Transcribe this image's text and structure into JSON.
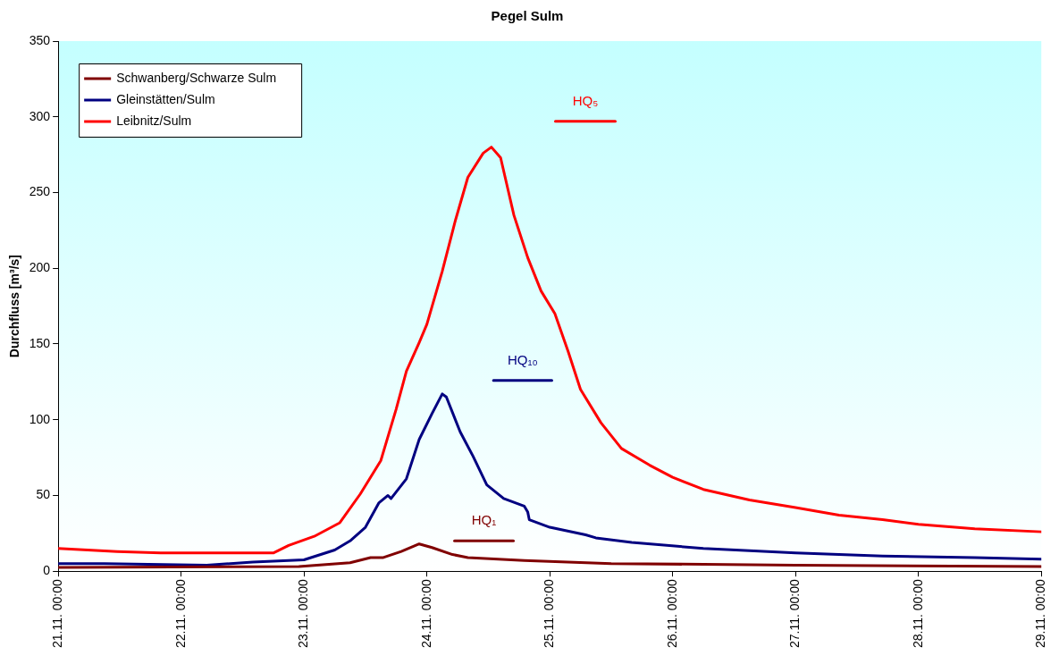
{
  "chart_data": {
    "type": "line",
    "title": "Pegel Sulm",
    "ylabel": "Durchfluss [m³/s]",
    "xlim": [
      "--11-21T00:00",
      "--11-29T00:00"
    ],
    "xticks": [
      {
        "value": "--11-21T00:00",
        "label": "21.11. 00:00"
      },
      {
        "value": "--11-22T00:00",
        "label": "22.11. 00:00"
      },
      {
        "value": "--11-23T00:00",
        "label": "23.11. 00:00"
      },
      {
        "value": "--11-24T00:00",
        "label": "24.11. 00:00"
      },
      {
        "value": "--11-25T00:00",
        "label": "25.11. 00:00"
      },
      {
        "value": "--11-26T00:00",
        "label": "26.11. 00:00"
      },
      {
        "value": "--11-27T00:00",
        "label": "27.11. 00:00"
      },
      {
        "value": "--11-28T00:00",
        "label": "28.11. 00:00"
      },
      {
        "value": "--11-29T00:00",
        "label": "29.11. 00:00"
      }
    ],
    "ylim": [
      0,
      350
    ],
    "yticks": [
      0,
      50,
      100,
      150,
      200,
      250,
      300,
      350
    ],
    "grid": false,
    "legend": "top left",
    "marker": "none",
    "line_style": "solid",
    "series": [
      {
        "name": "Schwanberg/Schwarze Sulm",
        "color": "#800000",
        "x": [
          "--11-21T00:00",
          "--11-22T23:00",
          "--11-23T09:00",
          "--11-23T13:00",
          "--11-23T15:30",
          "--11-23T19:00",
          "--11-23T22:30",
          "--11-24T01:00",
          "--11-24T05:00",
          "--11-24T08:00",
          "--11-24T19:00",
          "--11-25T12:00",
          "--11-27T00:00",
          "--11-29T00:00"
        ],
        "values": [
          2.5,
          3,
          5.6,
          9,
          9,
          13,
          18,
          15.6,
          11,
          9,
          7,
          5,
          4,
          3
        ]
      },
      {
        "name": "Gleinstätten/Sulm",
        "color": "#000080",
        "x": [
          "--11-21T00:00",
          "--11-21T09:00",
          "--11-22T05:00",
          "--11-22T14:00",
          "--11-23T00:00",
          "--11-23T06:00",
          "--11-23T09:00",
          "--11-23T12:00",
          "--11-23T14:36",
          "--11-23T16:24",
          "--11-23T17:00",
          "--11-23T20:00",
          "--11-23T22:30",
          "--11-24T01:00",
          "--11-24T03:00",
          "--11-24T03:48",
          "--11-24T06:30",
          "--11-24T09:00",
          "--11-24T11:42",
          "--11-24T15:00",
          "--11-24T19:00",
          "--11-24T19:42",
          "--11-24T20:00",
          "--11-25T00:00",
          "--11-25T07:00",
          "--11-25T09:00",
          "--11-25T16:00",
          "--11-26T06:00",
          "--11-27T00:00",
          "--11-27T17:00",
          "--11-28T11:00",
          "--11-29T00:00"
        ],
        "values": [
          5,
          5,
          4,
          6,
          7.5,
          14,
          20,
          29,
          45,
          50,
          48,
          61,
          87,
          104,
          117,
          115,
          92,
          76,
          57,
          48,
          43,
          39,
          34,
          29,
          24,
          22,
          19,
          15,
          12,
          10,
          9,
          8
        ]
      },
      {
        "name": "Leibnitz/Sulm",
        "color": "#ff0000",
        "x": [
          "--11-21T00:00",
          "--11-21T11:30",
          "--11-21T20:00",
          "--11-22T14:00",
          "--11-22T18:00",
          "--11-22T21:00",
          "--11-23T02:00",
          "--11-23T07:00",
          "--11-23T11:00",
          "--11-23T15:00",
          "--11-23T18:00",
          "--11-23T20:00",
          "--11-23T22:30",
          "--11-24T00:00",
          "--11-24T03:00",
          "--11-24T05:36",
          "--11-24T08:00",
          "--11-24T11:00",
          "--11-24T12:36",
          "--11-24T14:24",
          "--11-24T17:00",
          "--11-24T19:42",
          "--11-24T22:18",
          "--11-25T01:00",
          "--11-25T03:36",
          "--11-25T06:00",
          "--11-25T10:00",
          "--11-25T14:00",
          "--11-25T19:30",
          "--11-26T00:00",
          "--11-26T06:00",
          "--11-26T15:00",
          "--11-27T00:00",
          "--11-27T08:30",
          "--11-27T17:00",
          "--11-28T00:00",
          "--11-28T11:00",
          "--11-29T00:00"
        ],
        "values": [
          15,
          13,
          12,
          12,
          12,
          17,
          23,
          32,
          51,
          73,
          107,
          132,
          151,
          163,
          198,
          232,
          260,
          276,
          280,
          273,
          235,
          207,
          185,
          170,
          145,
          120,
          98,
          81,
          70,
          62,
          54,
          47,
          42,
          37,
          34,
          31,
          28,
          26
        ]
      },
      {
        "name": "HQ₁",
        "color": "#800000",
        "x": [
          "--11-24T05:24",
          "--11-24T16:54"
        ],
        "values": [
          20,
          20
        ]
      },
      {
        "name": "HQ₁₀",
        "color": "#000080",
        "x": [
          "--11-24T13:00",
          "--11-25T00:24"
        ],
        "values": [
          126,
          126
        ]
      },
      {
        "name": "HQ₅",
        "color": "#ff0000",
        "x": [
          "--11-25T01:06",
          "--11-25T12:48"
        ],
        "values": [
          297,
          297
        ]
      }
    ]
  }
}
